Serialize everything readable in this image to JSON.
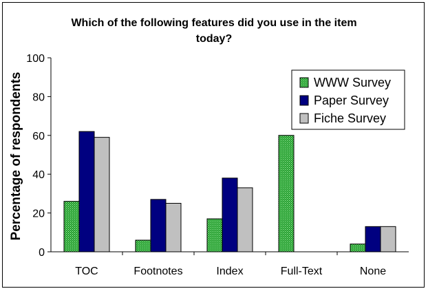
{
  "chart_data": {
    "type": "bar",
    "title_lines": [
      "Which of the following features did you use in the item",
      "today?"
    ],
    "xlabel": "",
    "ylabel": "Percentage of respondents",
    "ylim": [
      0,
      100
    ],
    "yticks": [
      0,
      20,
      40,
      60,
      80,
      100
    ],
    "grid": false,
    "legend_position": "top-right",
    "categories": [
      "TOC",
      "Footnotes",
      "Index",
      "Full-Text",
      "None"
    ],
    "series": [
      {
        "name": "WWW Survey",
        "values": [
          26,
          6,
          17,
          60,
          4
        ],
        "color": "#1f9a2a",
        "pattern": "dotted-green"
      },
      {
        "name": "Paper Survey",
        "values": [
          62,
          27,
          38,
          null,
          13
        ],
        "color": "#000080"
      },
      {
        "name": "Fiche Survey",
        "values": [
          59,
          25,
          33,
          null,
          13
        ],
        "color": "#c0c0c0"
      }
    ]
  }
}
